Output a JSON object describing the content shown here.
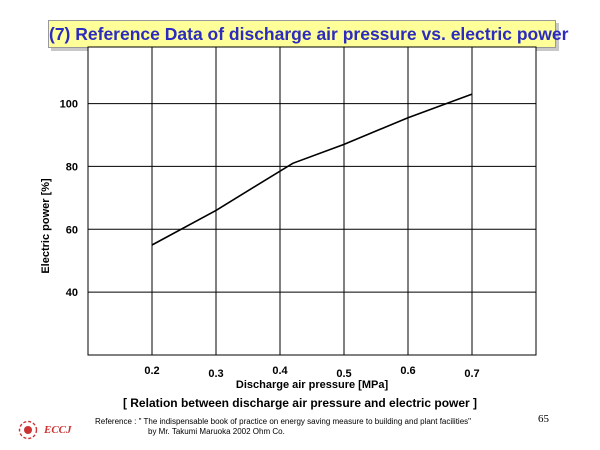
{
  "title": "(7) Reference Data of discharge air pressure vs. electric power",
  "chart_data": {
    "type": "line",
    "title": "(7) Reference Data of discharge air pressure vs. electric power",
    "xlabel": "Discharge air pressure [MPa]",
    "ylabel": "Electric power [%]",
    "x_ticks": [
      0.2,
      0.3,
      0.4,
      0.5,
      0.6,
      0.7
    ],
    "x_tick_labels": [
      "0.2",
      "0.3",
      "0.4",
      "0.5",
      "0.6",
      "0.7"
    ],
    "y_ticks": [
      40,
      60,
      80,
      100
    ],
    "y_tick_labels": [
      "40",
      "60",
      "80",
      "100"
    ],
    "xlim": [
      0.1,
      0.8
    ],
    "ylim": [
      20,
      118
    ],
    "grid": true,
    "series": [
      {
        "name": "Electric power",
        "x": [
          0.2,
          0.3,
          0.42,
          0.5,
          0.6,
          0.7
        ],
        "y": [
          55,
          66,
          81,
          87,
          95.5,
          103
        ]
      }
    ]
  },
  "caption": "[  Relation between discharge air pressure and electric power  ]",
  "logo_text": "ECCJ",
  "reference": {
    "line1": "Reference : \" The indispensable book of practice on energy saving measure to  building and plant facilities\"",
    "line2": "by Mr. Takumi Maruoka  2002 Ohm Co."
  },
  "page_number": "65",
  "colors": {
    "title_text": "#2b2bbf",
    "title_background": "#ffff99",
    "logo": "#cc3333"
  }
}
